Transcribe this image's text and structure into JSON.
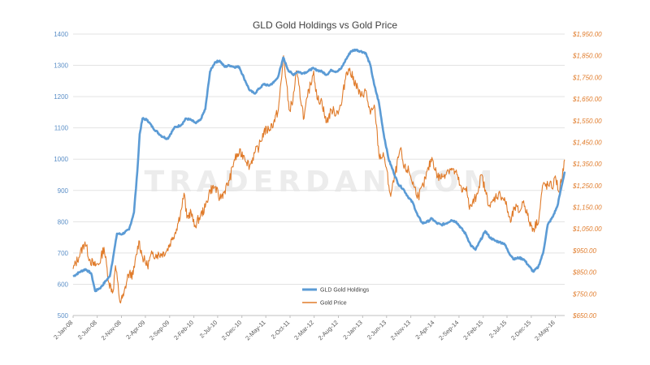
{
  "chart_data": {
    "type": "line",
    "title": "GLD Gold Holdings vs Gold Price",
    "watermark": "TRADERDAN.COM",
    "x_tick_labels": [
      "2-Jan-08",
      "2-Jun-08",
      "2-Nov-08",
      "2-Apr-09",
      "2-Sep-09",
      "2-Feb-10",
      "2-Jul-10",
      "2-Dec-10",
      "2-May-11",
      "2-Oct-11",
      "2-Mar-12",
      "2-Aug-12",
      "2-Jan-13",
      "2-Jun-13",
      "2-Nov-13",
      "2-Apr-14",
      "2-Sep-14",
      "2-Feb-15",
      "2-Jul-15",
      "2-Dec-15",
      "2-May-16"
    ],
    "x_range": [
      "2008-01-02",
      "2016-06-30"
    ],
    "y_left": {
      "ticks": [
        500,
        600,
        700,
        800,
        900,
        1000,
        1100,
        1200,
        1300,
        1400
      ],
      "range": [
        500,
        1400
      ]
    },
    "y_right": {
      "ticks": [
        "$650.00",
        "$750.00",
        "$850.00",
        "$950.00",
        "$1,050.00",
        "$1,150.00",
        "$1,250.00",
        "$1,350.00",
        "$1,450.00",
        "$1,550.00",
        "$1,650.00",
        "$1,750.00",
        "$1,850.00",
        "$1,950.00"
      ],
      "range": [
        650,
        1950
      ]
    },
    "grid": "horizontal",
    "legend": "bottom-center",
    "series": [
      {
        "name": "GLD Gold Holdings",
        "axis": "left",
        "color": "#5b9bd5",
        "points": [
          [
            "2008-01-02",
            625
          ],
          [
            "2008-02-15",
            640
          ],
          [
            "2008-03-20",
            648
          ],
          [
            "2008-04-25",
            635
          ],
          [
            "2008-05-20",
            578
          ],
          [
            "2008-06-25",
            590
          ],
          [
            "2008-07-25",
            610
          ],
          [
            "2008-08-20",
            625
          ],
          [
            "2008-09-15",
            700
          ],
          [
            "2008-10-05",
            762
          ],
          [
            "2008-11-05",
            760
          ],
          [
            "2008-12-20",
            775
          ],
          [
            "2009-01-20",
            830
          ],
          [
            "2009-02-10",
            960
          ],
          [
            "2009-02-25",
            1080
          ],
          [
            "2009-03-15",
            1130
          ],
          [
            "2009-04-15",
            1125
          ],
          [
            "2009-05-20",
            1100
          ],
          [
            "2009-07-10",
            1075
          ],
          [
            "2009-08-20",
            1065
          ],
          [
            "2009-10-01",
            1100
          ],
          [
            "2009-11-15",
            1110
          ],
          [
            "2009-12-15",
            1130
          ],
          [
            "2010-01-15",
            1125
          ],
          [
            "2010-02-15",
            1115
          ],
          [
            "2010-03-15",
            1125
          ],
          [
            "2010-04-15",
            1160
          ],
          [
            "2010-05-15",
            1280
          ],
          [
            "2010-06-15",
            1310
          ],
          [
            "2010-07-15",
            1315
          ],
          [
            "2010-08-15",
            1295
          ],
          [
            "2010-09-15",
            1300
          ],
          [
            "2010-10-15",
            1295
          ],
          [
            "2010-11-15",
            1295
          ],
          [
            "2010-12-15",
            1260
          ],
          [
            "2011-01-20",
            1220
          ],
          [
            "2011-02-20",
            1210
          ],
          [
            "2011-03-20",
            1225
          ],
          [
            "2011-04-20",
            1240
          ],
          [
            "2011-05-20",
            1235
          ],
          [
            "2011-06-20",
            1245
          ],
          [
            "2011-07-15",
            1260
          ],
          [
            "2011-08-08",
            1300
          ],
          [
            "2011-08-20",
            1325
          ],
          [
            "2011-09-20",
            1285
          ],
          [
            "2011-10-20",
            1270
          ],
          [
            "2011-11-20",
            1280
          ],
          [
            "2011-12-20",
            1275
          ],
          [
            "2012-01-20",
            1280
          ],
          [
            "2012-02-20",
            1290
          ],
          [
            "2012-03-20",
            1285
          ],
          [
            "2012-04-20",
            1280
          ],
          [
            "2012-05-20",
            1270
          ],
          [
            "2012-06-20",
            1285
          ],
          [
            "2012-07-20",
            1280
          ],
          [
            "2012-08-20",
            1290
          ],
          [
            "2012-09-20",
            1320
          ],
          [
            "2012-10-20",
            1345
          ],
          [
            "2012-11-20",
            1350
          ],
          [
            "2012-12-20",
            1345
          ],
          [
            "2013-01-20",
            1340
          ],
          [
            "2013-02-20",
            1300
          ],
          [
            "2013-03-15",
            1240
          ],
          [
            "2013-04-15",
            1180
          ],
          [
            "2013-05-15",
            1080
          ],
          [
            "2013-06-15",
            1000
          ],
          [
            "2013-07-15",
            960
          ],
          [
            "2013-08-15",
            920
          ],
          [
            "2013-09-15",
            905
          ],
          [
            "2013-10-15",
            880
          ],
          [
            "2013-11-15",
            860
          ],
          [
            "2013-12-15",
            820
          ],
          [
            "2014-01-15",
            795
          ],
          [
            "2014-02-15",
            800
          ],
          [
            "2014-03-15",
            810
          ],
          [
            "2014-04-15",
            795
          ],
          [
            "2014-05-15",
            790
          ],
          [
            "2014-06-15",
            795
          ],
          [
            "2014-07-15",
            805
          ],
          [
            "2014-08-15",
            800
          ],
          [
            "2014-09-15",
            780
          ],
          [
            "2014-10-15",
            760
          ],
          [
            "2014-11-15",
            725
          ],
          [
            "2014-12-15",
            710
          ],
          [
            "2015-01-15",
            740
          ],
          [
            "2015-02-15",
            770
          ],
          [
            "2015-03-15",
            750
          ],
          [
            "2015-04-15",
            740
          ],
          [
            "2015-05-15",
            735
          ],
          [
            "2015-06-15",
            730
          ],
          [
            "2015-07-15",
            700
          ],
          [
            "2015-08-15",
            680
          ],
          [
            "2015-09-15",
            685
          ],
          [
            "2015-10-15",
            680
          ],
          [
            "2015-11-15",
            660
          ],
          [
            "2015-12-15",
            640
          ],
          [
            "2016-01-15",
            655
          ],
          [
            "2016-02-15",
            700
          ],
          [
            "2016-03-15",
            790
          ],
          [
            "2016-04-15",
            815
          ],
          [
            "2016-05-15",
            850
          ],
          [
            "2016-06-30",
            960
          ]
        ]
      },
      {
        "name": "Gold Price",
        "axis": "right",
        "color": "#e07b2a",
        "points": [
          [
            "2008-01-02",
            865
          ],
          [
            "2008-02-15",
            935
          ],
          [
            "2008-03-17",
            990
          ],
          [
            "2008-04-15",
            910
          ],
          [
            "2008-05-15",
            880
          ],
          [
            "2008-06-15",
            890
          ],
          [
            "2008-07-15",
            965
          ],
          [
            "2008-08-15",
            800
          ],
          [
            "2008-09-10",
            760
          ],
          [
            "2008-09-25",
            880
          ],
          [
            "2008-10-24",
            712
          ],
          [
            "2008-11-15",
            740
          ],
          [
            "2008-12-15",
            840
          ],
          [
            "2009-01-15",
            840
          ],
          [
            "2009-02-20",
            995
          ],
          [
            "2009-03-15",
            920
          ],
          [
            "2009-04-15",
            880
          ],
          [
            "2009-05-15",
            935
          ],
          [
            "2009-06-15",
            930
          ],
          [
            "2009-07-15",
            935
          ],
          [
            "2009-08-15",
            950
          ],
          [
            "2009-09-15",
            1000
          ],
          [
            "2009-10-15",
            1050
          ],
          [
            "2009-11-15",
            1140
          ],
          [
            "2009-12-02",
            1215
          ],
          [
            "2009-12-20",
            1100
          ],
          [
            "2010-01-15",
            1130
          ],
          [
            "2010-02-05",
            1060
          ],
          [
            "2010-03-15",
            1110
          ],
          [
            "2010-04-15",
            1150
          ],
          [
            "2010-05-15",
            1230
          ],
          [
            "2010-06-15",
            1245
          ],
          [
            "2010-07-15",
            1190
          ],
          [
            "2010-08-15",
            1225
          ],
          [
            "2010-09-15",
            1275
          ],
          [
            "2010-10-15",
            1370
          ],
          [
            "2010-11-15",
            1400
          ],
          [
            "2010-12-15",
            1390
          ],
          [
            "2011-01-20",
            1340
          ],
          [
            "2011-02-20",
            1400
          ],
          [
            "2011-03-20",
            1430
          ],
          [
            "2011-04-20",
            1500
          ],
          [
            "2011-05-20",
            1510
          ],
          [
            "2011-06-20",
            1540
          ],
          [
            "2011-07-20",
            1600
          ],
          [
            "2011-08-10",
            1750
          ],
          [
            "2011-08-22",
            1850
          ],
          [
            "2011-09-26",
            1600
          ],
          [
            "2011-10-20",
            1640
          ],
          [
            "2011-11-10",
            1780
          ],
          [
            "2011-12-29",
            1560
          ],
          [
            "2012-01-20",
            1660
          ],
          [
            "2012-02-28",
            1780
          ],
          [
            "2012-03-20",
            1650
          ],
          [
            "2012-04-20",
            1640
          ],
          [
            "2012-05-16",
            1540
          ],
          [
            "2012-06-20",
            1600
          ],
          [
            "2012-07-20",
            1585
          ],
          [
            "2012-08-20",
            1620
          ],
          [
            "2012-09-20",
            1770
          ],
          [
            "2012-10-05",
            1790
          ],
          [
            "2012-11-20",
            1720
          ],
          [
            "2012-12-20",
            1660
          ],
          [
            "2013-01-20",
            1690
          ],
          [
            "2013-02-20",
            1580
          ],
          [
            "2013-03-20",
            1610
          ],
          [
            "2013-04-15",
            1390
          ],
          [
            "2013-05-20",
            1380
          ],
          [
            "2013-06-28",
            1200
          ],
          [
            "2013-08-28",
            1420
          ],
          [
            "2013-09-20",
            1330
          ],
          [
            "2013-10-20",
            1320
          ],
          [
            "2013-11-20",
            1250
          ],
          [
            "2013-12-20",
            1200
          ],
          [
            "2014-01-20",
            1250
          ],
          [
            "2014-03-15",
            1380
          ],
          [
            "2014-04-20",
            1290
          ],
          [
            "2014-05-20",
            1290
          ],
          [
            "2014-06-20",
            1320
          ],
          [
            "2014-07-15",
            1330
          ],
          [
            "2014-08-20",
            1300
          ],
          [
            "2014-09-20",
            1220
          ],
          [
            "2014-10-20",
            1245
          ],
          [
            "2014-11-07",
            1140
          ],
          [
            "2014-12-20",
            1200
          ],
          [
            "2015-01-22",
            1300
          ],
          [
            "2015-02-20",
            1210
          ],
          [
            "2015-03-18",
            1150
          ],
          [
            "2015-04-20",
            1200
          ],
          [
            "2015-05-20",
            1210
          ],
          [
            "2015-06-20",
            1180
          ],
          [
            "2015-07-24",
            1080
          ],
          [
            "2015-08-20",
            1150
          ],
          [
            "2015-09-20",
            1130
          ],
          [
            "2015-10-15",
            1180
          ],
          [
            "2015-11-20",
            1080
          ],
          [
            "2015-12-17",
            1050
          ],
          [
            "2016-01-20",
            1100
          ],
          [
            "2016-02-11",
            1250
          ],
          [
            "2016-03-20",
            1250
          ],
          [
            "2016-04-20",
            1250
          ],
          [
            "2016-05-02",
            1295
          ],
          [
            "2016-05-25",
            1220
          ],
          [
            "2016-06-15",
            1290
          ],
          [
            "2016-06-30",
            1370
          ]
        ]
      }
    ]
  }
}
